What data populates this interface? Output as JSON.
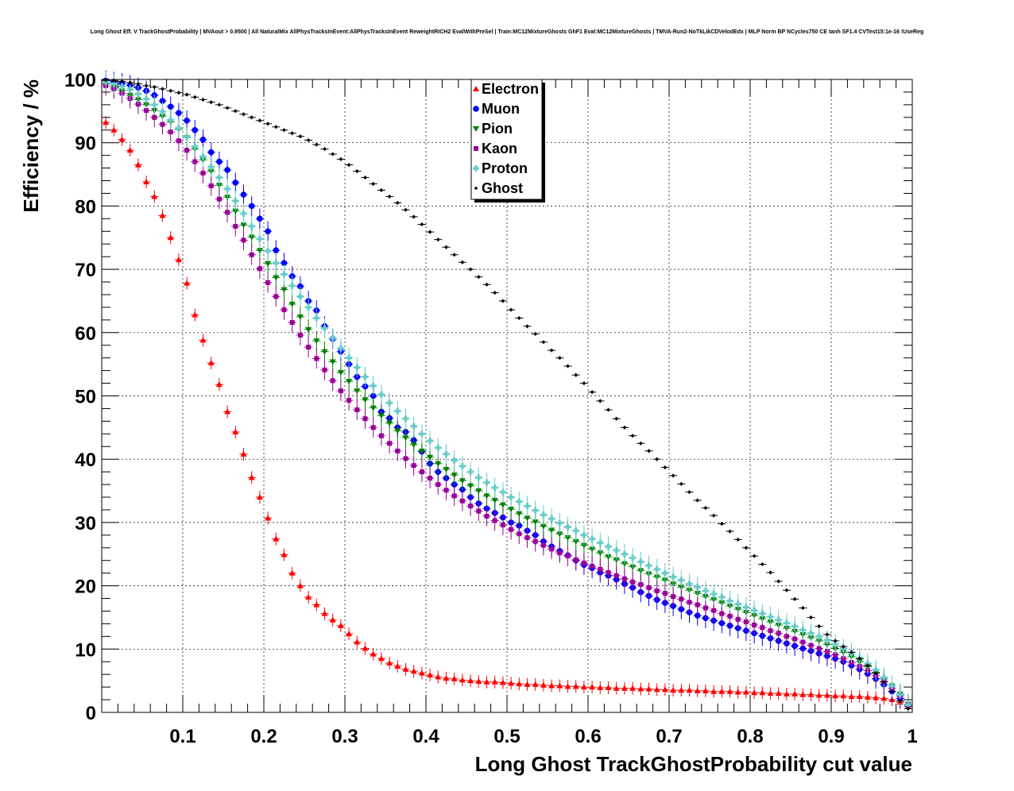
{
  "chart_data": {
    "type": "scatter",
    "title": "Long Ghost Eff. V TrackGhostProbability | MVAout > 0.9500 | All NaturalMix AllPhysTracksInEvent:AllPhysTracksInEvent ReweightRICH2 EvalWithPreSel | Train:MC12MixtureGhosts GhF1 Eval:MC12MixtureGhosts | TMVA-Run2-NoTkLikCDVelodEdx | MLP Norm BP NCycles750 CE tanh SF1.4 CVTest15:1e-16 !UseReg",
    "xlabel": "Long Ghost TrackGhostProbability cut value",
    "ylabel": "Efficiency / %",
    "xlim": [
      0,
      1
    ],
    "ylim": [
      0,
      100
    ],
    "xticks": [
      "0.1",
      "0.2",
      "0.3",
      "0.4",
      "0.5",
      "0.6",
      "0.7",
      "0.8",
      "0.9",
      "1"
    ],
    "yticks": [
      "0",
      "10",
      "20",
      "30",
      "40",
      "50",
      "60",
      "70",
      "80",
      "90",
      "100"
    ],
    "grid": true,
    "legend_position": "top-center",
    "x": [
      0.005,
      0.015,
      0.025,
      0.035,
      0.045,
      0.055,
      0.065,
      0.075,
      0.085,
      0.095,
      0.105,
      0.115,
      0.125,
      0.135,
      0.145,
      0.155,
      0.165,
      0.175,
      0.185,
      0.195,
      0.205,
      0.215,
      0.225,
      0.235,
      0.245,
      0.255,
      0.265,
      0.275,
      0.285,
      0.295,
      0.305,
      0.315,
      0.325,
      0.335,
      0.345,
      0.355,
      0.365,
      0.375,
      0.385,
      0.395,
      0.405,
      0.415,
      0.425,
      0.435,
      0.445,
      0.455,
      0.465,
      0.475,
      0.485,
      0.495,
      0.505,
      0.515,
      0.525,
      0.535,
      0.545,
      0.555,
      0.565,
      0.575,
      0.585,
      0.595,
      0.605,
      0.615,
      0.625,
      0.635,
      0.645,
      0.655,
      0.665,
      0.675,
      0.685,
      0.695,
      0.705,
      0.715,
      0.725,
      0.735,
      0.745,
      0.755,
      0.765,
      0.775,
      0.785,
      0.795,
      0.805,
      0.815,
      0.825,
      0.835,
      0.845,
      0.855,
      0.865,
      0.875,
      0.885,
      0.895,
      0.905,
      0.915,
      0.925,
      0.935,
      0.945,
      0.955,
      0.965,
      0.975,
      0.985,
      0.995
    ],
    "series": [
      {
        "name": "Electron",
        "color": "#ff0000",
        "marker": "triangle-up",
        "values": [
          93.2,
          92.0,
          90.5,
          88.8,
          86.5,
          83.8,
          81.5,
          78.5,
          75.0,
          71.5,
          67.8,
          62.8,
          58.8,
          55.2,
          51.8,
          47.5,
          44.3,
          40.8,
          37.1,
          34.0,
          30.7,
          27.4,
          24.9,
          22.0,
          20.0,
          18.2,
          17.0,
          15.6,
          14.6,
          13.7,
          12.4,
          11.1,
          10.1,
          9.2,
          8.5,
          7.8,
          7.3,
          6.8,
          6.5,
          6.2,
          5.9,
          5.6,
          5.4,
          5.3,
          5.1,
          5.0,
          4.9,
          4.8,
          4.8,
          4.7,
          4.6,
          4.5,
          4.4,
          4.4,
          4.3,
          4.2,
          4.2,
          4.1,
          4.1,
          4.0,
          4.0,
          3.9,
          3.9,
          3.8,
          3.8,
          3.8,
          3.7,
          3.7,
          3.6,
          3.6,
          3.5,
          3.5,
          3.5,
          3.4,
          3.4,
          3.3,
          3.3,
          3.3,
          3.2,
          3.2,
          3.1,
          3.1,
          3.0,
          3.0,
          2.9,
          2.9,
          2.8,
          2.8,
          2.7,
          2.7,
          2.6,
          2.6,
          2.5,
          2.5,
          2.4,
          2.3,
          2.2,
          2.0,
          1.6,
          0.9
        ]
      },
      {
        "name": "Muon",
        "color": "#0000ff",
        "marker": "circle",
        "values": [
          99.8,
          99.6,
          99.4,
          99.1,
          98.7,
          98.2,
          97.5,
          96.6,
          95.7,
          94.7,
          93.5,
          92.0,
          90.5,
          88.5,
          87.0,
          85.7,
          83.7,
          81.8,
          80.0,
          78.0,
          76.0,
          73.0,
          71.0,
          68.9,
          67.3,
          65.0,
          63.5,
          61.0,
          59.0,
          57.0,
          55.0,
          53.0,
          51.5,
          50.0,
          47.5,
          46.5,
          45.0,
          44.3,
          43.0,
          41.2,
          39.3,
          38.0,
          37.0,
          36.0,
          35.2,
          34.0,
          33.0,
          32.2,
          31.5,
          30.8,
          30.0,
          29.5,
          28.7,
          28.0,
          27.0,
          26.2,
          25.5,
          24.8,
          24.0,
          23.3,
          22.8,
          22.1,
          21.6,
          21.0,
          20.3,
          19.7,
          19.0,
          18.4,
          17.8,
          17.3,
          16.8,
          16.3,
          15.8,
          15.3,
          14.9,
          14.5,
          14.1,
          13.7,
          13.3,
          12.9,
          12.5,
          12.1,
          11.7,
          11.3,
          10.9,
          10.5,
          10.1,
          9.7,
          9.3,
          8.9,
          8.5,
          8.0,
          7.4,
          6.8,
          6.1,
          5.3,
          4.4,
          3.3,
          2.2,
          1.1
        ]
      },
      {
        "name": "Pion",
        "color": "#008000",
        "marker": "triangle-down",
        "values": [
          99.3,
          98.8,
          98.2,
          97.5,
          96.8,
          96.0,
          95.1,
          94.2,
          93.3,
          92.1,
          90.8,
          89.0,
          87.3,
          85.5,
          83.3,
          81.4,
          79.2,
          77.0,
          75.1,
          73.0,
          70.9,
          68.7,
          66.8,
          64.5,
          62.5,
          60.5,
          58.7,
          57.0,
          55.4,
          53.7,
          52.3,
          50.8,
          49.4,
          48.1,
          46.9,
          45.7,
          44.5,
          43.4,
          42.3,
          41.3,
          40.3,
          39.3,
          38.4,
          37.5,
          36.6,
          35.8,
          35.0,
          34.2,
          33.5,
          32.8,
          32.1,
          31.4,
          30.7,
          30.1,
          29.4,
          28.8,
          28.2,
          27.6,
          27.0,
          26.4,
          25.8,
          25.2,
          24.6,
          24.1,
          23.5,
          23.0,
          22.4,
          21.9,
          21.4,
          20.9,
          20.3,
          19.8,
          19.3,
          18.8,
          18.3,
          17.8,
          17.3,
          16.8,
          16.3,
          15.8,
          15.3,
          14.8,
          14.3,
          13.8,
          13.3,
          12.8,
          12.3,
          11.8,
          11.3,
          10.7,
          10.1,
          9.5,
          8.8,
          8.0,
          7.2,
          6.3,
          5.3,
          4.2,
          2.9,
          1.3
        ]
      },
      {
        "name": "Kaon",
        "color": "#990099",
        "marker": "square",
        "values": [
          99.0,
          98.5,
          97.8,
          97.0,
          96.1,
          95.1,
          94.0,
          92.9,
          91.7,
          90.3,
          88.8,
          87.0,
          85.2,
          83.2,
          81.1,
          79.0,
          76.8,
          74.6,
          72.3,
          70.1,
          67.9,
          65.7,
          63.6,
          61.6,
          59.6,
          57.7,
          55.9,
          54.1,
          52.4,
          50.8,
          49.3,
          47.8,
          46.4,
          45.0,
          43.7,
          42.5,
          41.3,
          40.1,
          39.0,
          38.0,
          37.0,
          36.0,
          35.1,
          34.2,
          33.4,
          32.6,
          31.8,
          31.0,
          30.3,
          29.6,
          28.9,
          28.2,
          27.6,
          27.0,
          26.4,
          25.8,
          25.2,
          24.7,
          24.1,
          23.6,
          23.1,
          22.6,
          22.1,
          21.6,
          21.1,
          20.6,
          20.2,
          19.7,
          19.2,
          18.8,
          18.3,
          17.9,
          17.4,
          17.0,
          16.5,
          16.1,
          15.6,
          15.2,
          14.7,
          14.3,
          13.8,
          13.4,
          12.9,
          12.5,
          12.0,
          11.6,
          11.1,
          10.6,
          10.1,
          9.6,
          9.1,
          8.5,
          7.9,
          7.3,
          6.6,
          5.8,
          4.9,
          3.8,
          2.6,
          1.2
        ]
      },
      {
        "name": "Proton",
        "color": "#66cccc",
        "marker": "cross",
        "values": [
          99.6,
          99.3,
          98.9,
          98.4,
          97.7,
          96.9,
          96.0,
          94.9,
          93.6,
          92.3,
          90.9,
          89.4,
          87.8,
          86.2,
          84.5,
          82.7,
          80.8,
          78.8,
          76.8,
          74.8,
          72.9,
          71.0,
          69.2,
          67.4,
          65.7,
          64.0,
          62.3,
          60.7,
          59.1,
          57.5,
          56.0,
          54.5,
          53.0,
          51.6,
          50.2,
          48.9,
          47.6,
          46.4,
          45.2,
          44.0,
          42.9,
          41.8,
          40.8,
          39.8,
          38.9,
          38.0,
          37.1,
          36.3,
          35.5,
          34.8,
          34.0,
          33.3,
          32.6,
          31.9,
          31.2,
          30.6,
          29.9,
          29.3,
          28.7,
          28.0,
          27.4,
          26.8,
          26.2,
          25.6,
          25.0,
          24.4,
          23.8,
          23.2,
          22.6,
          22.0,
          21.4,
          20.9,
          20.3,
          19.8,
          19.2,
          18.7,
          18.2,
          17.6,
          17.1,
          16.6,
          16.1,
          15.6,
          15.1,
          14.6,
          14.1,
          13.6,
          13.0,
          12.5,
          12.0,
          11.4,
          10.8,
          10.1,
          9.4,
          8.6,
          7.7,
          6.7,
          5.5,
          4.2,
          2.8,
          1.2
        ]
      },
      {
        "name": "Ghost",
        "color": "#000000",
        "marker": "dot",
        "values": [
          99.9,
          99.8,
          99.7,
          99.5,
          99.3,
          99.0,
          98.8,
          98.5,
          98.2,
          97.9,
          97.6,
          97.2,
          96.8,
          96.4,
          96.0,
          95.5,
          95.0,
          94.5,
          94.0,
          93.5,
          93.0,
          92.5,
          92.0,
          91.5,
          91.0,
          90.4,
          89.7,
          89.0,
          88.2,
          87.4,
          86.5,
          85.5,
          84.5,
          83.5,
          82.5,
          81.5,
          80.5,
          79.4,
          78.3,
          77.1,
          75.9,
          74.7,
          73.5,
          72.3,
          71.1,
          70.0,
          68.8,
          67.6,
          66.3,
          65.0,
          63.6,
          62.3,
          61.0,
          59.8,
          58.5,
          57.2,
          56.0,
          54.7,
          53.3,
          52.0,
          50.6,
          49.2,
          47.8,
          46.4,
          45.0,
          43.7,
          42.5,
          41.3,
          40.0,
          38.7,
          37.4,
          36.1,
          34.8,
          33.5,
          32.3,
          31.1,
          29.8,
          28.6,
          27.3,
          26.0,
          24.7,
          23.4,
          22.1,
          20.7,
          19.3,
          17.9,
          16.5,
          15.0,
          13.6,
          12.3,
          11.3,
          10.4,
          9.5,
          8.5,
          7.4,
          6.2,
          4.8,
          3.3,
          1.8,
          0.6
        ]
      }
    ]
  }
}
